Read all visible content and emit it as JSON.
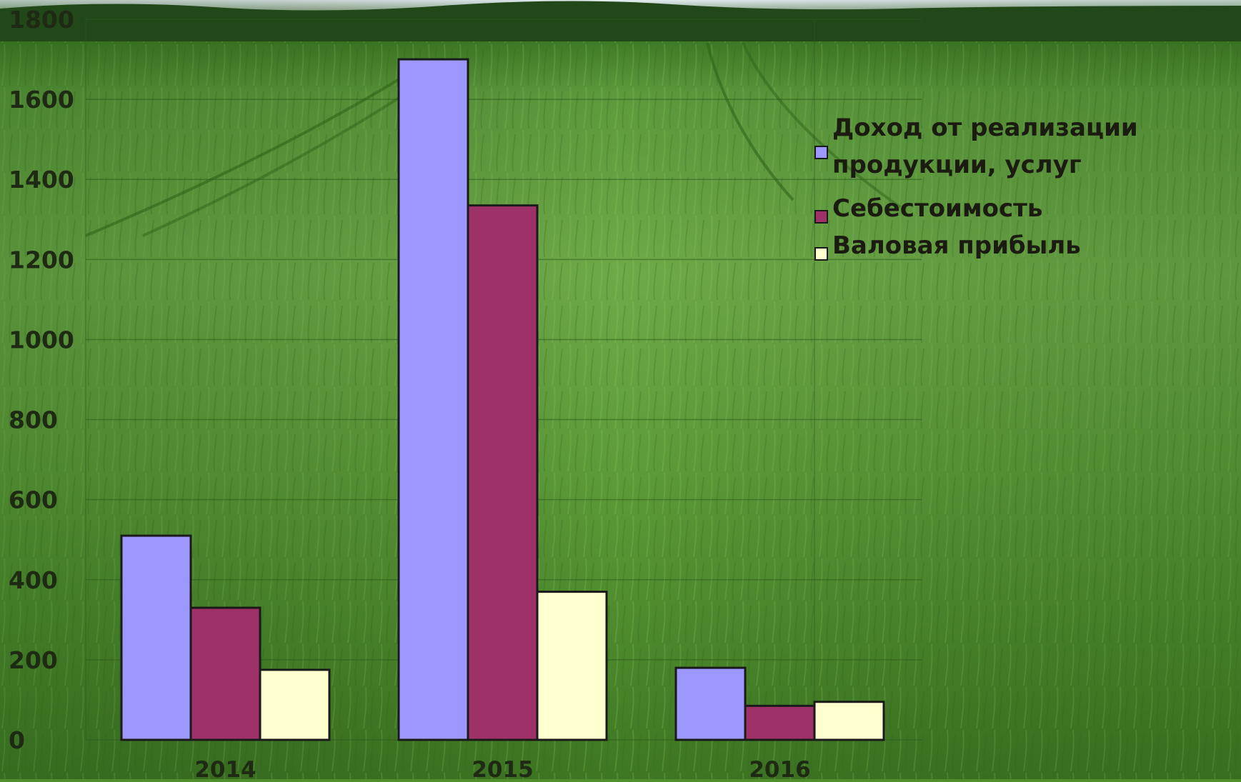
{
  "chart_data": {
    "type": "bar",
    "title": "",
    "xlabel": "",
    "ylabel": "",
    "categories": [
      "2014",
      "2015",
      "2016"
    ],
    "series": [
      {
        "name": "Доход от реализации продукции, услуг",
        "values": [
          510,
          1700,
          180
        ],
        "color": "#9d98ff"
      },
      {
        "name": "Себестоимость",
        "values": [
          330,
          1335,
          85
        ],
        "color": "#9e3168"
      },
      {
        "name": "Валовая прибыль",
        "values": [
          175,
          370,
          95
        ],
        "color": "#ffffd0"
      }
    ],
    "ylim": [
      0,
      1800
    ],
    "yticks": [
      "0",
      "200",
      "400",
      "600",
      "800",
      "1000",
      "1200",
      "1400",
      "1600",
      "1800"
    ],
    "legend": {
      "position": "right",
      "entries": [
        {
          "lines": [
            "Доход от реализации",
            "продукции, услуг"
          ],
          "color": "#9d98ff"
        },
        {
          "lines": [
            "Себестоимость"
          ],
          "color": "#9e3168"
        },
        {
          "lines": [
            "Валовая прибыль"
          ],
          "color": "#ffffd0"
        }
      ]
    },
    "grid": true,
    "background": "photo-wheat-field"
  }
}
